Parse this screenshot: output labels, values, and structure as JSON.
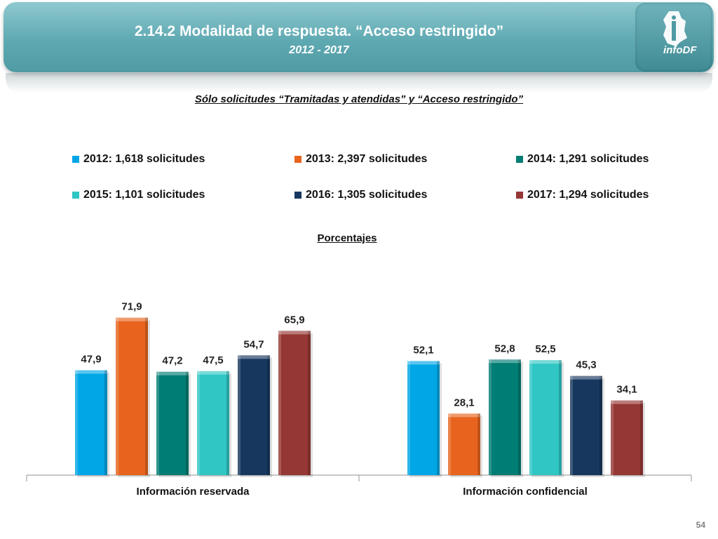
{
  "header": {
    "title": "2.14.2 Modalidad de respuesta. “Acceso restringido”",
    "subtitle": "2012 - 2017",
    "logo_text": "infoDF"
  },
  "section_title": "Sólo solicitudes “Tramitadas y atendidas” y “Acceso restringido”",
  "percentages_label": "Porcentajes",
  "page_number": "54",
  "legend": [
    {
      "label": "2012: 1,618 solicitudes",
      "color": "#00a6e6"
    },
    {
      "label": "2013: 2,397 solicitudes",
      "color": "#e8641e"
    },
    {
      "label": "2014: 1,291 solicitudes",
      "color": "#007d74"
    },
    {
      "label": "2015: 1,101 solicitudes",
      "color": "#2fc6c4"
    },
    {
      "label": "2016: 1,305 solicitudes",
      "color": "#17375e"
    },
    {
      "label": "2017: 1,294 solicitudes",
      "color": "#953734"
    }
  ],
  "chart_data": {
    "type": "bar",
    "categories": [
      "Información reservada",
      "Información confidencial"
    ],
    "series": [
      {
        "name": "2012: 1,618 solicitudes",
        "values": [
          47.9,
          52.1
        ],
        "labels": [
          "47,9",
          "52,1"
        ],
        "color": "#00a6e6"
      },
      {
        "name": "2013: 2,397 solicitudes",
        "values": [
          71.9,
          28.1
        ],
        "labels": [
          "71,9",
          "28,1"
        ],
        "color": "#e8641e"
      },
      {
        "name": "2014: 1,291 solicitudes",
        "values": [
          47.2,
          52.8
        ],
        "labels": [
          "47,2",
          "52,8"
        ],
        "color": "#007d74"
      },
      {
        "name": "2015: 1,101 solicitudes",
        "values": [
          47.5,
          52.5
        ],
        "labels": [
          "47,5",
          "52,5"
        ],
        "color": "#2fc6c4"
      },
      {
        "name": "2016: 1,305 solicitudes",
        "values": [
          54.7,
          45.3
        ],
        "labels": [
          "54,7",
          "45,3"
        ],
        "color": "#17375e"
      },
      {
        "name": "2017: 1,294 solicitudes",
        "values": [
          65.9,
          34.1
        ],
        "labels": [
          "65,9",
          "34,1"
        ],
        "color": "#953734"
      }
    ],
    "ylim": [
      0,
      100
    ],
    "grid": false,
    "legend_position": "top"
  }
}
